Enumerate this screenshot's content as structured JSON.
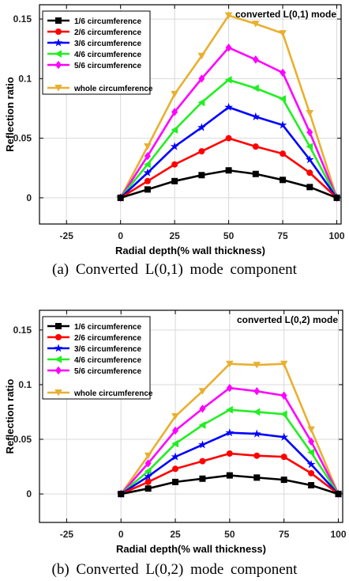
{
  "charts": [
    {
      "caption": "(a)  Converted  L(0,1)  mode  component",
      "chart_data": {
        "type": "line",
        "title": "converted L(0,1) mode",
        "xlabel": "Radial depth(% wall thickness)",
        "ylabel": "Reflection ratio",
        "xlim": [
          -37.5,
          102
        ],
        "ylim": [
          -0.022,
          0.162
        ],
        "xticks": [
          -25,
          0,
          25,
          50,
          75,
          100
        ],
        "yticks": [
          0,
          0.05,
          0.1,
          0.15
        ],
        "ytick_labels": [
          "0",
          "0.05",
          "0.1",
          "0.15"
        ],
        "grid": true,
        "legend_position": "top-left",
        "x": [
          0,
          12.5,
          25,
          37.5,
          50,
          62.5,
          75,
          87.5,
          100
        ],
        "series": [
          {
            "name": "1/6 circumference",
            "color": "#000000",
            "marker": "square",
            "values": [
              0,
              0.007,
              0.014,
              0.019,
              0.023,
              0.02,
              0.015,
              0.009,
              0
            ]
          },
          {
            "name": "2/6 circumference",
            "color": "#ff0000",
            "marker": "circle",
            "values": [
              0,
              0.014,
              0.028,
              0.039,
              0.05,
              0.043,
              0.037,
              0.021,
              0
            ]
          },
          {
            "name": "3/6 circumference",
            "color": "#0000ff",
            "marker": "star",
            "values": [
              0,
              0.021,
              0.043,
              0.059,
              0.076,
              0.068,
              0.061,
              0.032,
              0
            ]
          },
          {
            "name": "4/6 circumference",
            "color": "#22ee22",
            "marker": "triangle-left",
            "values": [
              0,
              0.028,
              0.057,
              0.08,
              0.099,
              0.092,
              0.083,
              0.043,
              0
            ]
          },
          {
            "name": "5/6 circumference",
            "color": "#ff00ff",
            "marker": "diamond",
            "values": [
              0,
              0.035,
              0.072,
              0.1,
              0.126,
              0.116,
              0.105,
              0.055,
              0
            ]
          },
          {
            "name": "whole circumference",
            "color": "#e8b030",
            "marker": "triangle-down",
            "values": [
              0,
              0.043,
              0.087,
              0.119,
              0.153,
              0.146,
              0.138,
              0.071,
              0
            ]
          }
        ]
      }
    },
    {
      "caption": "(b)  Converted  L(0,2)  mode  component",
      "chart_data": {
        "type": "line",
        "title": "converted L(0,2) mode",
        "xlabel": "Radial depth(% wall thickness)",
        "ylabel": "Reflection ratio",
        "xlim": [
          -37.5,
          102
        ],
        "ylim": [
          -0.026,
          0.168
        ],
        "xticks": [
          -25,
          0,
          25,
          50,
          75,
          100
        ],
        "yticks": [
          0,
          0.05,
          0.1,
          0.15
        ],
        "ytick_labels": [
          "0",
          "0.05",
          "0.1",
          "0.15"
        ],
        "grid": true,
        "legend_position": "top-left",
        "x": [
          0,
          12.5,
          25,
          37.5,
          50,
          62.5,
          75,
          87.5,
          100
        ],
        "series": [
          {
            "name": "1/6 circumference",
            "color": "#000000",
            "marker": "square",
            "values": [
              0,
              0.005,
              0.011,
              0.014,
              0.017,
              0.015,
              0.013,
              0.008,
              0
            ]
          },
          {
            "name": "2/6 circumference",
            "color": "#ff0000",
            "marker": "circle",
            "values": [
              0,
              0.011,
              0.023,
              0.03,
              0.037,
              0.035,
              0.034,
              0.019,
              0
            ]
          },
          {
            "name": "3/6 circumference",
            "color": "#0000ff",
            "marker": "star",
            "values": [
              0,
              0.016,
              0.034,
              0.045,
              0.056,
              0.055,
              0.052,
              0.027,
              0
            ]
          },
          {
            "name": "4/6 circumference",
            "color": "#22ee22",
            "marker": "triangle-left",
            "values": [
              0,
              0.021,
              0.046,
              0.063,
              0.077,
              0.075,
              0.073,
              0.038,
              0
            ]
          },
          {
            "name": "5/6 circumference",
            "color": "#ff00ff",
            "marker": "diamond",
            "values": [
              0,
              0.028,
              0.058,
              0.078,
              0.097,
              0.094,
              0.09,
              0.048,
              0
            ]
          },
          {
            "name": "whole circumference",
            "color": "#e8b030",
            "marker": "triangle-down",
            "values": [
              0,
              0.035,
              0.071,
              0.094,
              0.119,
              0.118,
              0.119,
              0.059,
              0
            ]
          }
        ]
      }
    }
  ]
}
